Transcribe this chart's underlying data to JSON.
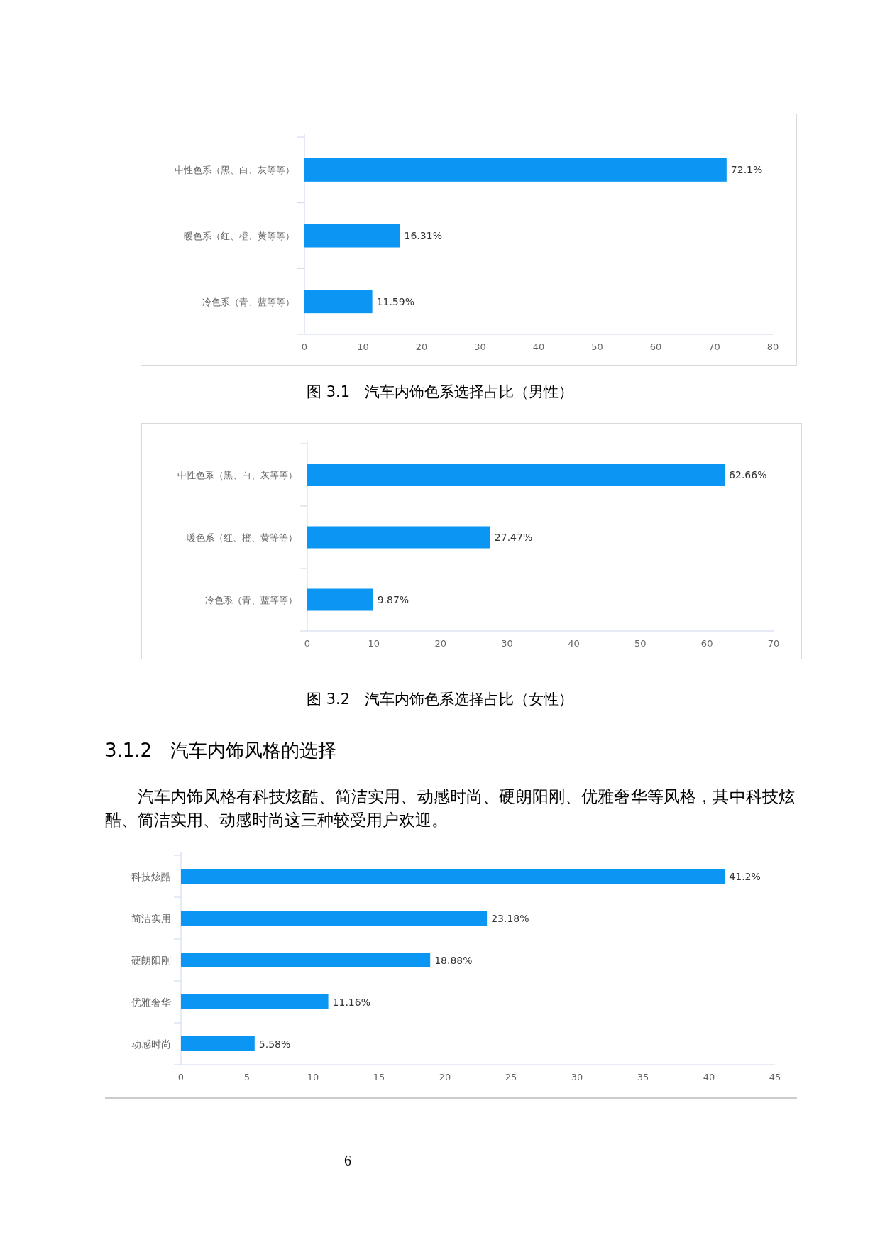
{
  "chart_data": [
    {
      "type": "bar",
      "orientation": "horizontal",
      "title": "图 3.1　汽车内饰色系选择占比（男性）",
      "categories": [
        "中性色系（黑、白、灰等等）",
        "暖色系（红、橙、黄等等）",
        "冷色系（青、蓝等等）"
      ],
      "values": [
        72.1,
        16.31,
        11.59
      ],
      "value_labels": [
        "72.1%",
        "16.31%",
        "11.59%"
      ],
      "color": "#0a96f2",
      "xlim": [
        0,
        80
      ],
      "xticks": [
        0,
        10,
        20,
        30,
        40,
        50,
        60,
        70,
        80
      ],
      "grid": false
    },
    {
      "type": "bar",
      "orientation": "horizontal",
      "title": "图 3.2　汽车内饰色系选择占比（女性）",
      "categories": [
        "中性色系（黑、白、灰等等）",
        "暖色系（红、橙、黄等等）",
        "冷色系（青、蓝等等）"
      ],
      "values": [
        62.66,
        27.47,
        9.87
      ],
      "value_labels": [
        "62.66%",
        "27.47%",
        "9.87%"
      ],
      "color": "#0a96f2",
      "xlim": [
        0,
        70
      ],
      "xticks": [
        0,
        10,
        20,
        30,
        40,
        50,
        60,
        70
      ],
      "grid": false
    },
    {
      "type": "bar",
      "orientation": "horizontal",
      "title": "3.1.2　汽车内饰风格的选择",
      "subtitle": "汽车内饰风格有科技炫酷、简洁实用、动感时尚、硬朗阳刚、优雅奢华等风格，其中科技炫酷、简洁实用、动感时尚这三种较受用户欢迎。",
      "categories": [
        "科技炫酷",
        "简洁实用",
        "硬朗阳刚",
        "优雅奢华",
        "动感时尚"
      ],
      "values": [
        41.2,
        23.18,
        18.88,
        11.16,
        5.58
      ],
      "value_labels": [
        "41.2%",
        "23.18%",
        "18.88%",
        "11.16%",
        "5.58%"
      ],
      "color": "#0a96f2",
      "xlim": [
        0,
        45
      ],
      "xticks": [
        0,
        5,
        10,
        15,
        20,
        25,
        30,
        35,
        40,
        45
      ],
      "grid": false,
      "annotations": [
        "6"
      ]
    }
  ]
}
